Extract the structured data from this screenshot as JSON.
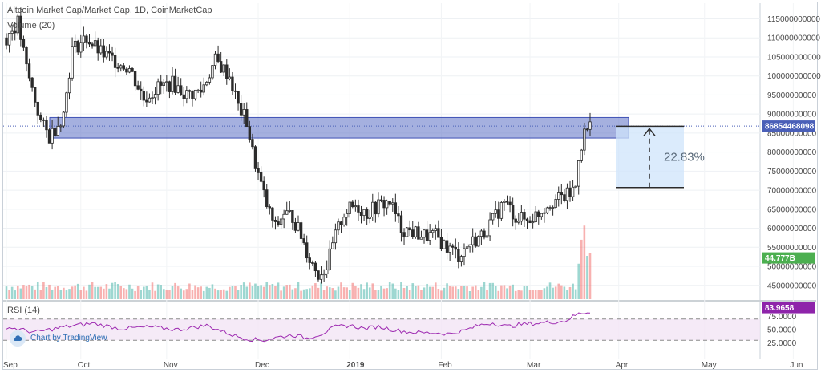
{
  "header": {
    "title": "Altcoin Market Cap/Market Cap, 1D, CoinMarketCap",
    "volume_label": "Volume (20)",
    "rsi_label": "RSI (14)",
    "watermark": "Chart by TradingView"
  },
  "colors": {
    "up": "#26a69a",
    "down": "#ef5350",
    "candle": "#2b2b2b",
    "zone": "#5b6fc4",
    "measure_fill": "#cfe4fb",
    "rsi_line": "#9c27b0",
    "rsi_band": "#f3e5f5",
    "price_tag": "#4a5fb8",
    "volume_tag": "#4caf50",
    "rsi_tag": "#8e24aa"
  },
  "chart_data": {
    "type": "candlestick",
    "title": "Altcoin Market Cap/Market Cap, 1D, CoinMarketCap",
    "x_labels": [
      "Sep",
      "Oct",
      "Nov",
      "Dec",
      "2019",
      "Feb",
      "Mar",
      "Apr",
      "May",
      "Jun"
    ],
    "y_ticks": [
      "115000000000",
      "110000000000",
      "105000000000",
      "100000000000",
      "95000000000",
      "90000000000",
      "85000000000",
      "80000000000",
      "75000000000",
      "70000000000",
      "65000000000",
      "60000000000",
      "55000000000",
      "50000000000",
      "45000000000"
    ],
    "ylim": [
      42000000000,
      117000000000
    ],
    "last_price": "86854468098",
    "volume_last": "44.777B",
    "rsi_last": "83.9658",
    "rsi_ticks": [
      "75.0000",
      "50.0000",
      "25.0000"
    ],
    "rsi_levels": [
      70,
      30
    ],
    "resistance_zone": [
      83700000000,
      89100000000
    ],
    "measure": {
      "from": 70700000000,
      "to": 86800000000,
      "label": "22.83%"
    },
    "price_anchors": [
      [
        0,
        110000000000
      ],
      [
        4,
        114000000000
      ],
      [
        7,
        102000000000
      ],
      [
        12,
        88000000000
      ],
      [
        15,
        84000000000
      ],
      [
        20,
        90000000000
      ],
      [
        23,
        107000000000
      ],
      [
        28,
        110000000000
      ],
      [
        33,
        106000000000
      ],
      [
        38,
        104000000000
      ],
      [
        43,
        102000000000
      ],
      [
        48,
        94000000000
      ],
      [
        53,
        97000000000
      ],
      [
        58,
        98000000000
      ],
      [
        63,
        95000000000
      ],
      [
        68,
        96000000000
      ],
      [
        73,
        104000000000
      ],
      [
        78,
        100000000000
      ],
      [
        81,
        92000000000
      ],
      [
        84,
        88000000000
      ],
      [
        86,
        80000000000
      ],
      [
        88,
        74000000000
      ],
      [
        91,
        66000000000
      ],
      [
        94,
        60000000000
      ],
      [
        97,
        64000000000
      ],
      [
        100,
        63000000000
      ],
      [
        103,
        58000000000
      ],
      [
        106,
        52000000000
      ],
      [
        109,
        48000000000
      ],
      [
        112,
        50000000000
      ],
      [
        115,
        58000000000
      ],
      [
        118,
        64000000000
      ],
      [
        122,
        66000000000
      ],
      [
        126,
        64000000000
      ],
      [
        130,
        66000000000
      ],
      [
        134,
        67000000000
      ],
      [
        138,
        60000000000
      ],
      [
        142,
        59000000000
      ],
      [
        146,
        58000000000
      ],
      [
        150,
        58000000000
      ],
      [
        154,
        55000000000
      ],
      [
        158,
        53000000000
      ],
      [
        162,
        56000000000
      ],
      [
        166,
        58000000000
      ],
      [
        170,
        62000000000
      ],
      [
        174,
        67000000000
      ],
      [
        178,
        63000000000
      ],
      [
        182,
        62000000000
      ],
      [
        186,
        64000000000
      ],
      [
        190,
        67000000000
      ],
      [
        194,
        68000000000
      ],
      [
        197,
        69000000000
      ],
      [
        199,
        71000000000
      ],
      [
        200,
        79000000000
      ],
      [
        202,
        85000000000
      ],
      [
        204,
        86800000000
      ]
    ],
    "volume_values": [
      2,
      2,
      2,
      2,
      2,
      2,
      2,
      2,
      2,
      2,
      2,
      2,
      2,
      2,
      2,
      2,
      2,
      2,
      2,
      2,
      2,
      2,
      2,
      2,
      2,
      2,
      2,
      2,
      2,
      2,
      2,
      2,
      2,
      2,
      2,
      2,
      2,
      2,
      2,
      2,
      2,
      2,
      2,
      2,
      2,
      2,
      2,
      2,
      2,
      2,
      2,
      2,
      2,
      2,
      2,
      2,
      2,
      2,
      2,
      2,
      2,
      2,
      2,
      2,
      2,
      2,
      2,
      2,
      2,
      2,
      2,
      2,
      2,
      2,
      2,
      2,
      2,
      2,
      2,
      2,
      2,
      2,
      2,
      2,
      2,
      2,
      2,
      2,
      2,
      2,
      2,
      2,
      2,
      2,
      2,
      2,
      2,
      2,
      2,
      2,
      2,
      2,
      2,
      2,
      2,
      2,
      2,
      2,
      2,
      2,
      2,
      2,
      2,
      2,
      2,
      2,
      2,
      2,
      2,
      2,
      2,
      2,
      2,
      2,
      2,
      2,
      2,
      2,
      2,
      2,
      2,
      2,
      2,
      2,
      2,
      2,
      2,
      2,
      2,
      2,
      2,
      2,
      2,
      2,
      2,
      2,
      2,
      2,
      2,
      2,
      2,
      2,
      2,
      2,
      2,
      2,
      2,
      2,
      2,
      2,
      2,
      2,
      2,
      2,
      2,
      2,
      2,
      2,
      2,
      2,
      2,
      2,
      2,
      2,
      2,
      2,
      2,
      2,
      2,
      2,
      2,
      2,
      2,
      2,
      2,
      2,
      2,
      2,
      2,
      2,
      2,
      2,
      2,
      2,
      2,
      2,
      2,
      2,
      2,
      2,
      8,
      12,
      16,
      10,
      9
    ],
    "rsi_anchors": [
      [
        0,
        55
      ],
      [
        10,
        45
      ],
      [
        20,
        55
      ],
      [
        30,
        62
      ],
      [
        40,
        52
      ],
      [
        50,
        55
      ],
      [
        60,
        50
      ],
      [
        70,
        58
      ],
      [
        75,
        48
      ],
      [
        80,
        38
      ],
      [
        85,
        32
      ],
      [
        90,
        30
      ],
      [
        95,
        36
      ],
      [
        100,
        40
      ],
      [
        105,
        34
      ],
      [
        110,
        42
      ],
      [
        115,
        55
      ],
      [
        120,
        58
      ],
      [
        125,
        52
      ],
      [
        130,
        56
      ],
      [
        135,
        50
      ],
      [
        140,
        46
      ],
      [
        145,
        44
      ],
      [
        150,
        44
      ],
      [
        155,
        42
      ],
      [
        160,
        48
      ],
      [
        165,
        58
      ],
      [
        170,
        63
      ],
      [
        175,
        56
      ],
      [
        180,
        60
      ],
      [
        185,
        62
      ],
      [
        190,
        64
      ],
      [
        195,
        66
      ],
      [
        200,
        80
      ],
      [
        204,
        84
      ]
    ]
  }
}
